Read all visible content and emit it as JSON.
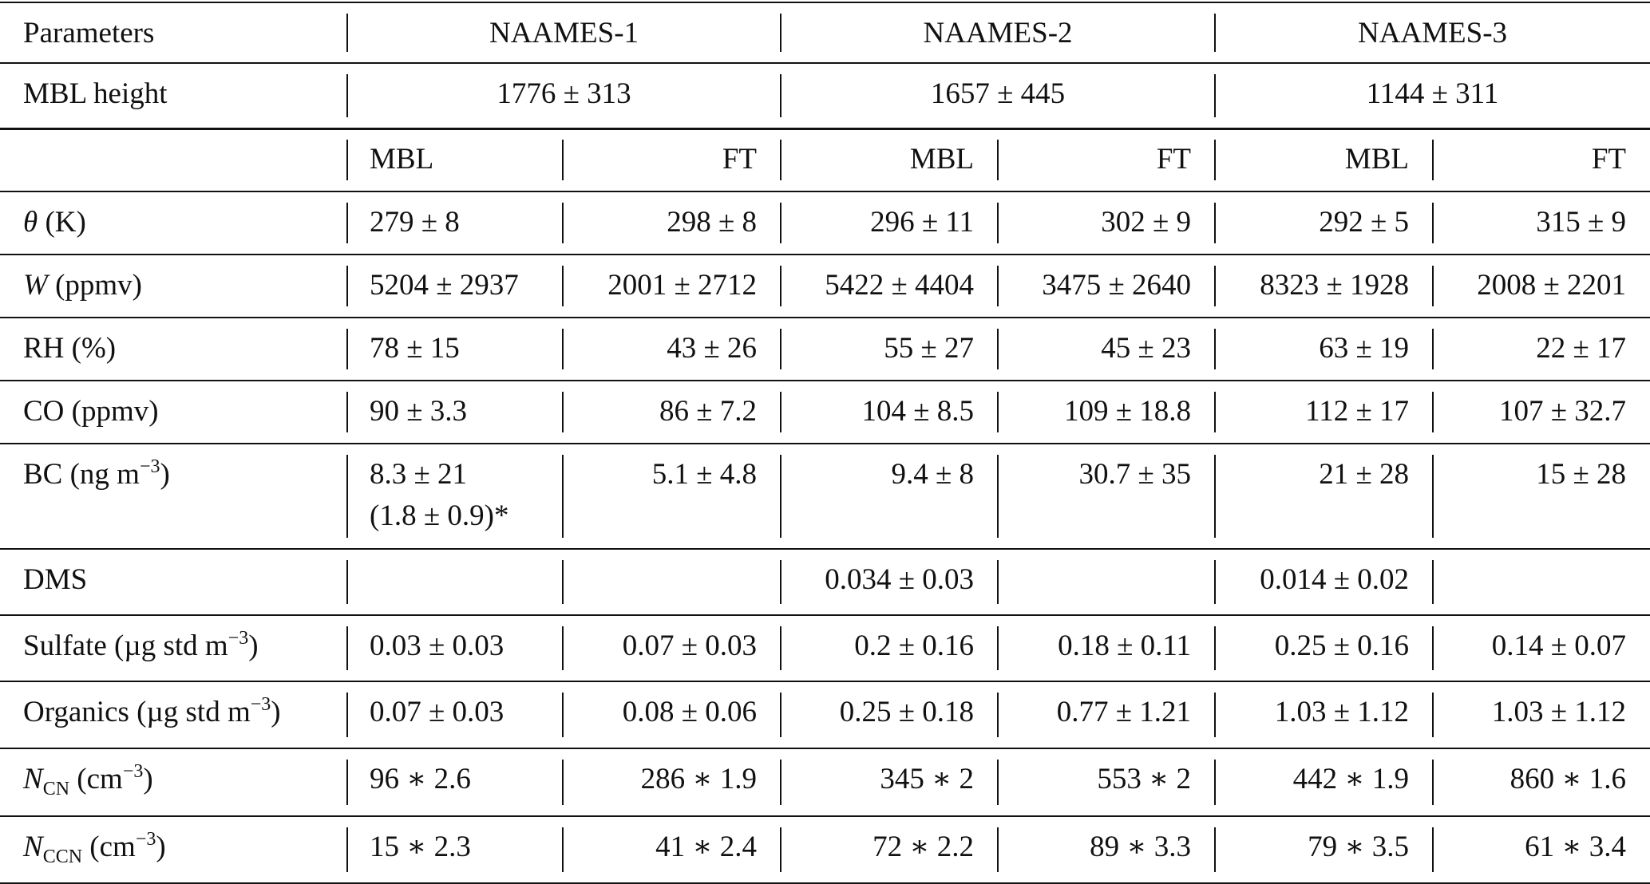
{
  "table": {
    "header": [
      "Parameters",
      "NAAMES-1",
      "NAAMES-2",
      "NAAMES-3"
    ],
    "mbl_height": {
      "label": "MBL height",
      "values": [
        "1776 ± 313",
        "1657 ± 445",
        "1144 ± 311"
      ]
    },
    "subheader": [
      "MBL",
      "FT",
      "MBL",
      "FT",
      "MBL",
      "FT"
    ],
    "rows": [
      {
        "label": [
          {
            "t": "θ",
            "i": true
          },
          {
            "t": " (K)"
          }
        ],
        "cells": [
          "279 ± 8",
          "298 ± 8",
          "296 ± 11",
          "302 ± 9",
          "292 ± 5",
          "315 ± 9"
        ]
      },
      {
        "label": [
          {
            "t": "W",
            "i": true
          },
          {
            "t": " (ppmv)"
          }
        ],
        "cells": [
          "5204 ± 2937",
          "2001 ± 2712",
          "5422 ± 4404",
          "3475 ± 2640",
          "8323 ± 1928",
          "2008 ± 2201"
        ]
      },
      {
        "label": [
          {
            "t": "RH (%)"
          }
        ],
        "cells": [
          "78 ± 15",
          "43 ± 26",
          "55 ± 27",
          "45 ± 23",
          "63 ± 19",
          "22 ± 17"
        ]
      },
      {
        "label": [
          {
            "t": "CO (ppmv)"
          }
        ],
        "cells": [
          "90 ± 3.3",
          "86 ± 7.2",
          "104 ± 8.5",
          "109 ± 18.8",
          "112 ± 17",
          "107 ± 32.7"
        ]
      },
      {
        "label": [
          {
            "t": "BC (ng m"
          },
          {
            "t": "−3",
            "sup": true
          },
          {
            "t": ")"
          }
        ],
        "cells": [
          [
            "8.3 ± 21",
            "(1.8 ± 0.9)*"
          ],
          "5.1 ± 4.8",
          "9.4 ± 8",
          "30.7 ± 35",
          "21 ± 28",
          "15 ± 28"
        ]
      },
      {
        "label": [
          {
            "t": "DMS"
          }
        ],
        "cells": [
          null,
          null,
          "0.034 ± 0.03",
          null,
          "0.014 ± 0.02",
          null
        ]
      },
      {
        "label": [
          {
            "t": "Sulfate (µg std m"
          },
          {
            "t": "−3",
            "sup": true
          },
          {
            "t": ")"
          }
        ],
        "cells": [
          "0.03 ± 0.03",
          "0.07 ± 0.03",
          "0.2 ± 0.16",
          "0.18 ± 0.11",
          "0.25 ± 0.16",
          "0.14 ± 0.07"
        ]
      },
      {
        "label": [
          {
            "t": "Organics (µg std m"
          },
          {
            "t": "−3",
            "sup": true
          },
          {
            "t": ")"
          }
        ],
        "cells": [
          "0.07 ± 0.03",
          "0.08 ± 0.06",
          "0.25 ± 0.18",
          "0.77 ± 1.21",
          "1.03 ± 1.12",
          "1.03 ± 1.12"
        ]
      },
      {
        "label": [
          {
            "t": "N",
            "i": true
          },
          {
            "t": "CN",
            "sub": true
          },
          {
            "t": " (cm"
          },
          {
            "t": "−3",
            "sup": true
          },
          {
            "t": ")"
          }
        ],
        "cells": [
          "96 ∗ 2.6",
          "286 ∗ 1.9",
          "345 ∗ 2",
          "553 ∗ 2",
          "442 ∗ 1.9",
          "860 ∗ 1.6"
        ]
      },
      {
        "label": [
          {
            "t": "N",
            "i": true
          },
          {
            "t": "CCN",
            "sub": true
          },
          {
            "t": " (cm"
          },
          {
            "t": "−3",
            "sup": true
          },
          {
            "t": ")"
          }
        ],
        "cells": [
          "15 ∗ 2.3",
          "41 ∗ 2.4",
          "72 ∗ 2.2",
          "89 ∗ 3.3",
          "79 ∗ 3.5",
          "61 ∗ 3.4"
        ]
      }
    ]
  }
}
